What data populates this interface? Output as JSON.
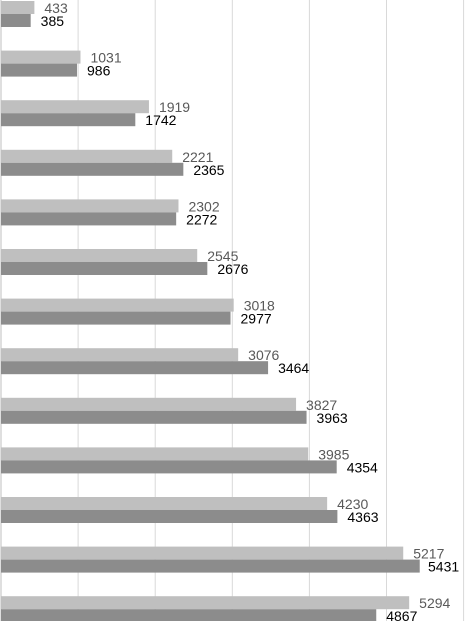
{
  "chart_data": {
    "type": "bar",
    "orientation": "horizontal",
    "grid": true,
    "legend": "none",
    "xlim": [
      0,
      6000
    ],
    "grid_step": 1000,
    "series": [
      {
        "color": "#bfbfbf",
        "label_color": "#595959",
        "values": [
          433,
          1031,
          1919,
          2221,
          2302,
          2545,
          3018,
          3076,
          3827,
          3985,
          4230,
          5217,
          5294
        ]
      },
      {
        "color": "#8c8c8c",
        "label_color": "#000000",
        "values": [
          385,
          986,
          1742,
          2365,
          2272,
          2676,
          2977,
          3464,
          3963,
          4354,
          4363,
          5431,
          4867
        ]
      }
    ]
  }
}
